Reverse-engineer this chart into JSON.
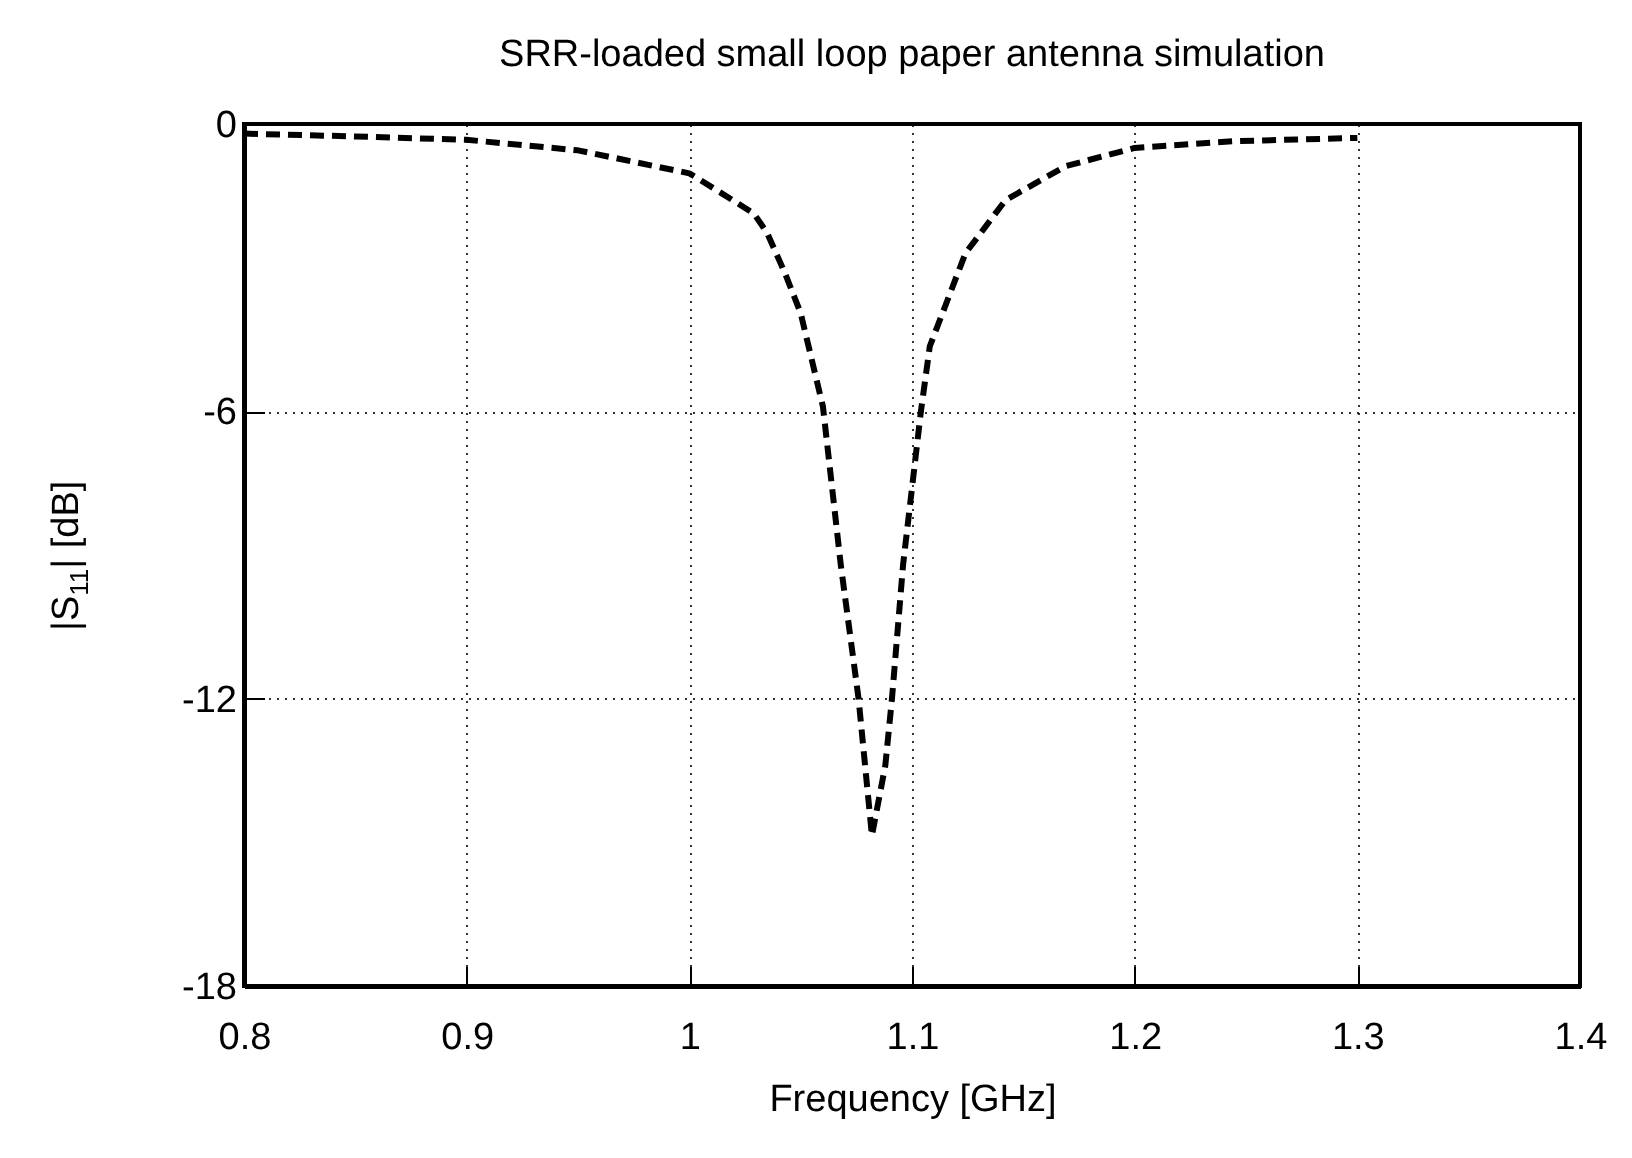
{
  "chart_data": {
    "type": "line",
    "title": "SRR-loaded small loop paper antenna simulation",
    "xlabel": "Frequency [GHz]",
    "ylabel": "|S$_{11}$| [dB]",
    "xlim": [
      0.8,
      1.4
    ],
    "xticks": [
      0.8,
      0.9,
      1,
      1.1,
      1.2,
      1.3,
      1.4
    ],
    "ylim": [
      -18,
      0
    ],
    "yticks": [
      -18,
      -12,
      -6,
      0
    ],
    "grid": true,
    "line_style": "dashed",
    "marker": "none",
    "series": [
      {
        "color": "#000000",
        "x": [
          0.8,
          0.85,
          0.9,
          0.95,
          1.0,
          1.005,
          1.029,
          1.035,
          1.043,
          1.05,
          1.06,
          1.068,
          1.076,
          1.082,
          1.088,
          1.091,
          1.096,
          1.104,
          1.108,
          1.124,
          1.142,
          1.169,
          1.2,
          1.244,
          1.3
        ],
        "values": [
          -0.2,
          -0.26,
          -0.33,
          -0.55,
          -1.03,
          -1.17,
          -1.87,
          -2.28,
          -3.12,
          -3.95,
          -5.9,
          -9.2,
          -12.0,
          -14.86,
          -13.4,
          -12.0,
          -9.2,
          -6.0,
          -4.64,
          -2.7,
          -1.59,
          -0.88,
          -0.5,
          -0.36,
          -0.29
        ]
      }
    ]
  }
}
